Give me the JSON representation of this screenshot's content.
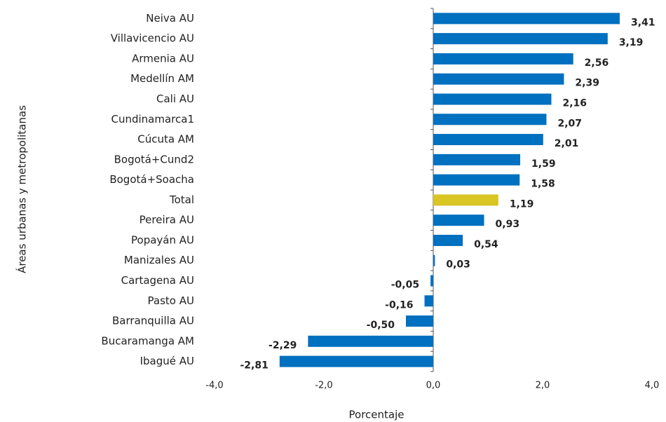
{
  "chart_data": {
    "type": "barh",
    "categories": [
      "Neiva AU",
      "Villavicencio AU",
      "Armenia AU",
      "Medellín AM",
      "Cali AU",
      "Cundinamarca1",
      "Cúcuta AM",
      "Bogotá+Cund2",
      "Bogotá+Soacha",
      "Total",
      "Pereira AU",
      "Popayán AU",
      "Manizales AU",
      "Cartagena AU",
      "Pasto AU",
      "Barranquilla AU",
      "Bucaramanga AM",
      "Ibagué AU"
    ],
    "values": [
      3.41,
      3.19,
      2.56,
      2.39,
      2.16,
      2.07,
      2.01,
      1.59,
      1.58,
      1.19,
      0.93,
      0.54,
      0.03,
      -0.05,
      -0.16,
      -0.5,
      -2.29,
      -2.81
    ],
    "value_labels": [
      "3,41",
      "3,19",
      "2,56",
      "2,39",
      "2,16",
      "2,07",
      "2,01",
      "1,59",
      "1,58",
      "1,19",
      "0,93",
      "0,54",
      "0,03",
      "-0,05",
      "-0,16",
      "-0,50",
      "-2,29",
      "-2,81"
    ],
    "colors": [
      "#0070c0",
      "#0070c0",
      "#0070c0",
      "#0070c0",
      "#0070c0",
      "#0070c0",
      "#0070c0",
      "#0070c0",
      "#0070c0",
      "#d9c523",
      "#0070c0",
      "#0070c0",
      "#0070c0",
      "#0070c0",
      "#0070c0",
      "#0070c0",
      "#0070c0",
      "#0070c0"
    ],
    "xlim": [
      -4,
      4
    ],
    "xticks": [
      {
        "value": -4,
        "label": "-4,0"
      },
      {
        "value": -2,
        "label": "-2,0"
      },
      {
        "value": 0,
        "label": "0,0"
      },
      {
        "value": 2,
        "label": "2,0"
      },
      {
        "value": 4,
        "label": "4,0"
      }
    ],
    "xlabel": "Porcentaje",
    "ylabel": "Áreas urbanas y metropolitanas"
  }
}
